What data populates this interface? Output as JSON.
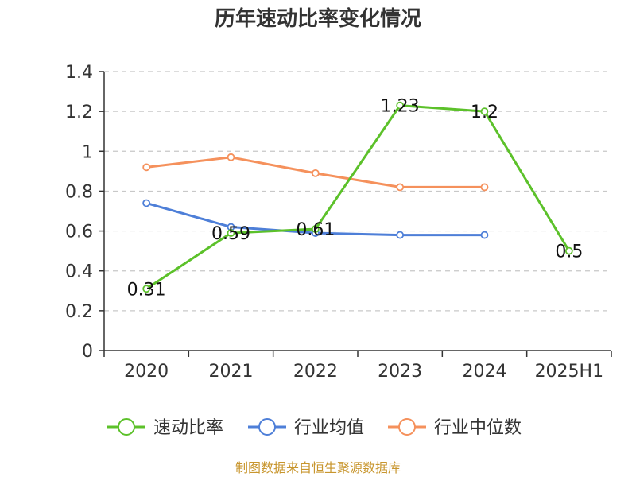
{
  "chart_data": {
    "type": "line",
    "title": "历年速动比率变化情况",
    "categories": [
      "2020",
      "2021",
      "2022",
      "2023",
      "2024",
      "2025H1"
    ],
    "ylim": [
      0,
      1.4
    ],
    "yticks": [
      "0",
      "0.2",
      "0.4",
      "0.6",
      "0.8",
      "1",
      "1.2",
      "1.4"
    ],
    "grid": true,
    "legend_position": "bottom",
    "series": [
      {
        "name": "速动比率",
        "color": "#5cc12a",
        "values": [
          0.31,
          0.59,
          0.61,
          1.23,
          1.2,
          0.5
        ],
        "labels": [
          "0.31",
          "0.59",
          "0.61",
          "1.23",
          "1.2",
          "0.5"
        ]
      },
      {
        "name": "行业均值",
        "color": "#4e7fd8",
        "values": [
          0.74,
          0.62,
          0.59,
          0.58,
          0.58,
          null
        ]
      },
      {
        "name": "行业中位数",
        "color": "#f5915c",
        "values": [
          0.92,
          0.97,
          0.89,
          0.82,
          0.82,
          null
        ]
      }
    ],
    "source": "制图数据来自恒生聚源数据库"
  }
}
